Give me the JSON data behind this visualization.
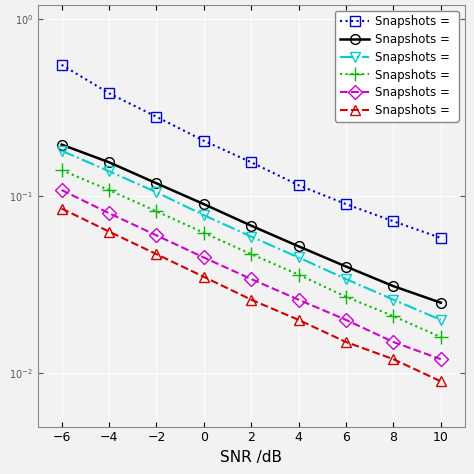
{
  "snr": [
    -6,
    -4,
    -2,
    0,
    2,
    4,
    6,
    8,
    10
  ],
  "series": [
    {
      "label": "Snapshots = ",
      "color": "#0000CC",
      "linestyle": "dotted",
      "marker": "s",
      "markerfacecolor": "none",
      "markersize": 7,
      "linewidth": 1.5,
      "values": [
        0.55,
        0.38,
        0.28,
        0.205,
        0.155,
        0.115,
        0.09,
        0.072,
        0.058
      ]
    },
    {
      "label": "Snapshots = ",
      "color": "#000000",
      "linestyle": "solid",
      "marker": "o",
      "markerfacecolor": "none",
      "markersize": 7,
      "linewidth": 1.8,
      "values": [
        0.195,
        0.155,
        0.118,
        0.09,
        0.068,
        0.052,
        0.04,
        0.031,
        0.025
      ]
    },
    {
      "label": "Snapshots = ",
      "color": "#00CCCC",
      "linestyle": "dashdot",
      "marker": "v",
      "markerfacecolor": "none",
      "markersize": 7,
      "linewidth": 1.5,
      "values": [
        0.18,
        0.138,
        0.105,
        0.078,
        0.059,
        0.045,
        0.034,
        0.026,
        0.02
      ]
    },
    {
      "label": "Snapshots = ",
      "color": "#00BB00",
      "linestyle": "dotted",
      "marker": "+",
      "markerfacecolor": "#00BB00",
      "markersize": 10,
      "linewidth": 1.5,
      "values": [
        0.14,
        0.108,
        0.082,
        0.062,
        0.047,
        0.036,
        0.027,
        0.021,
        0.016
      ]
    },
    {
      "label": "Snapshots = ",
      "color": "#CC00CC",
      "linestyle": "dashed",
      "marker": "D",
      "markerfacecolor": "none",
      "markersize": 7,
      "linewidth": 1.5,
      "values": [
        0.108,
        0.08,
        0.06,
        0.045,
        0.034,
        0.026,
        0.02,
        0.015,
        0.012
      ]
    },
    {
      "label": "Snapshots = ",
      "color": "#CC0000",
      "linestyle": "dashed",
      "marker": "^",
      "markerfacecolor": "none",
      "markersize": 7,
      "linewidth": 1.5,
      "values": [
        0.085,
        0.063,
        0.047,
        0.035,
        0.026,
        0.02,
        0.015,
        0.012,
        0.009
      ]
    }
  ],
  "xlabel": "SNR /dB",
  "xlim": [
    -7,
    11
  ],
  "xticks": [
    -6,
    -4,
    -2,
    0,
    2,
    4,
    6,
    8,
    10
  ],
  "ylim": [
    0.005,
    1.2
  ],
  "background_color": "#f2f2f2",
  "grid_color": "#ffffff",
  "legend_loc": "upper right"
}
